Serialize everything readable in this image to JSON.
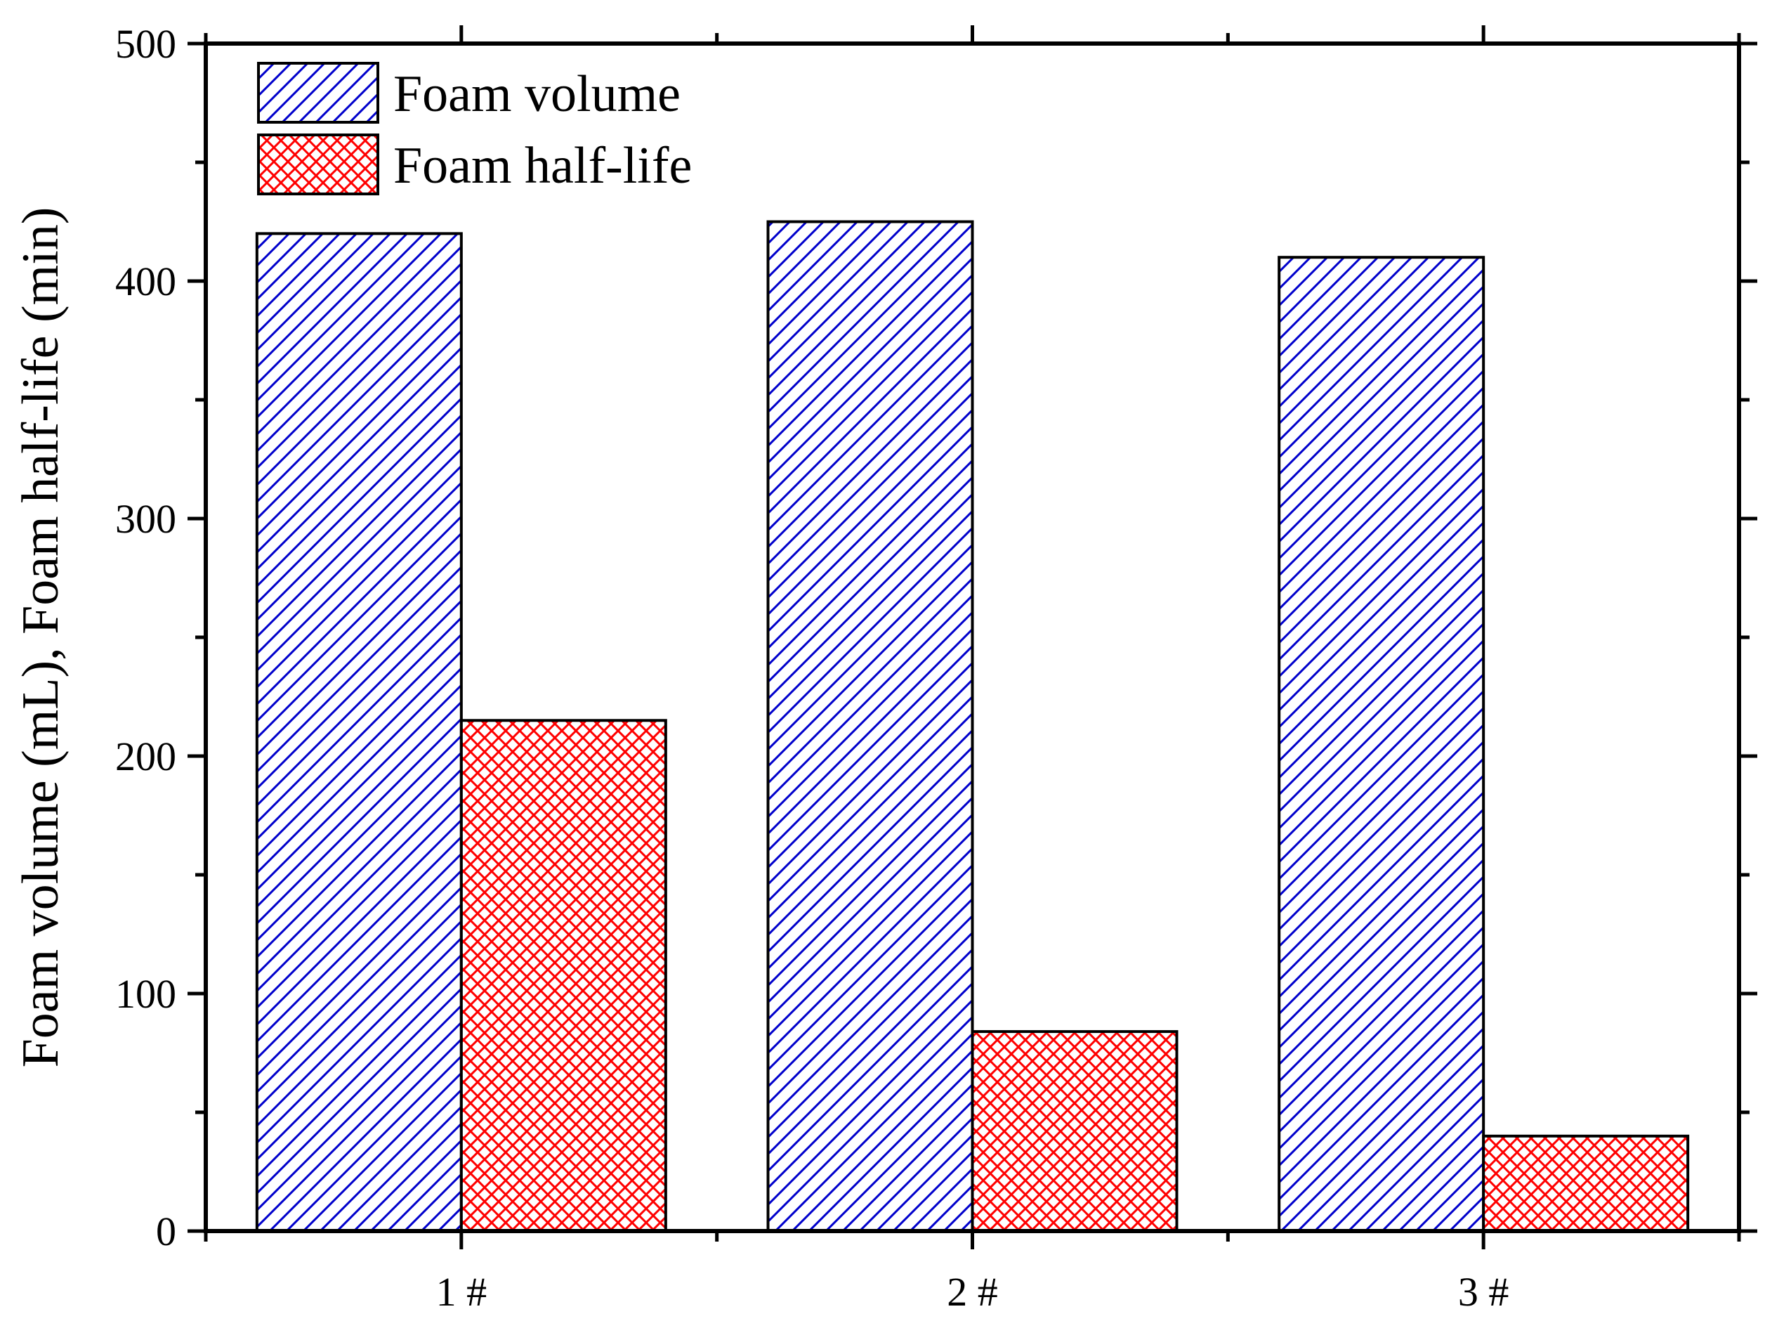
{
  "chart_data": {
    "type": "bar",
    "categories": [
      "1 #",
      "2 #",
      "3 #"
    ],
    "series": [
      {
        "name": "Foam volume",
        "values": [
          420,
          425,
          410
        ],
        "color": "#0000cc",
        "pattern": "diagonal-hatch"
      },
      {
        "name": "Foam half-life",
        "values": [
          215,
          84,
          40
        ],
        "color": "#ff0000",
        "pattern": "cross-hatch"
      }
    ],
    "title": "",
    "xlabel": "",
    "ylabel": "Foam volume (mL), Foam half-life (min)",
    "ylim": [
      0,
      500
    ],
    "yticks": [
      "0",
      "100",
      "200",
      "300",
      "400",
      "500"
    ],
    "legend_position": "top-left",
    "grid": false
  }
}
